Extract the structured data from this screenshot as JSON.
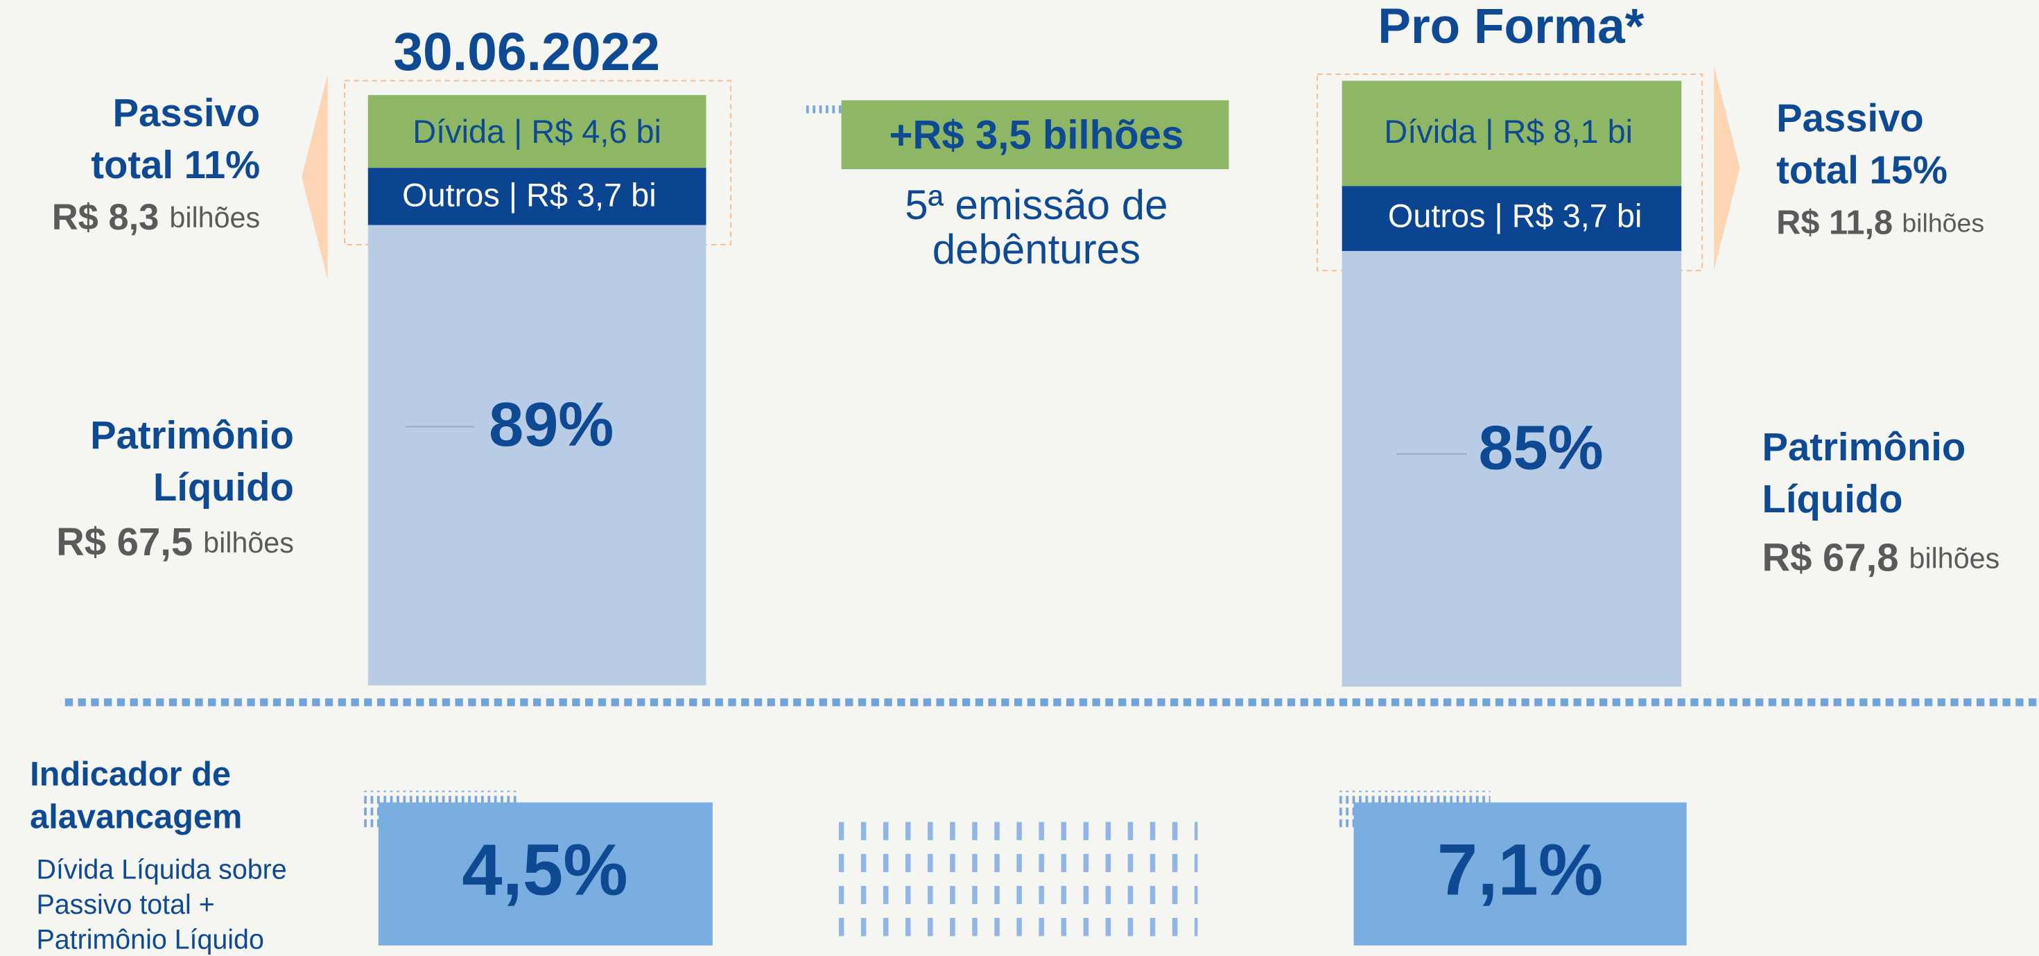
{
  "left": {
    "title": "30.06.2022",
    "liabilities_line1": "Passivo",
    "liabilities_line2": "total 11%",
    "liabilities_amount": "R$ 8,3",
    "liabilities_unit": "bilhões",
    "debt_segment": "Dívida | R$ 4,6 bi",
    "other_segment": "Outros | R$ 3,7 bi",
    "equity_percent": "89%",
    "equity_line1": "Patrimônio",
    "equity_line2": "Líquido",
    "equity_amount": "R$ 67,5",
    "equity_unit": "bilhões",
    "indicator": "4,5%"
  },
  "middle": {
    "issue_amount": "+R$ 3,5 bilhões",
    "issue_line1": "5ª emissão de",
    "issue_line2": "debêntures"
  },
  "right": {
    "title": "Pro Forma*",
    "liabilities_line1": "Passivo",
    "liabilities_line2": "total 15%",
    "liabilities_amount": "R$ 11,8",
    "liabilities_unit": "bilhões",
    "debt_segment": "Dívida | R$ 8,1 bi",
    "other_segment": "Outros | R$ 3,7 bi",
    "equity_percent": "85%",
    "equity_line1": "Patrimônio",
    "equity_line2": "Líquido",
    "equity_amount": "R$ 67,8",
    "equity_unit": "bilhões",
    "indicator": "7,1%"
  },
  "indicator_legend": {
    "title_line1": "Indicador de",
    "title_line2": "alavancagem",
    "description_line1": "Dívida Líquida sobre",
    "description_line2": "Passivo total +",
    "description_line3": "Patrimônio Líquido"
  }
}
